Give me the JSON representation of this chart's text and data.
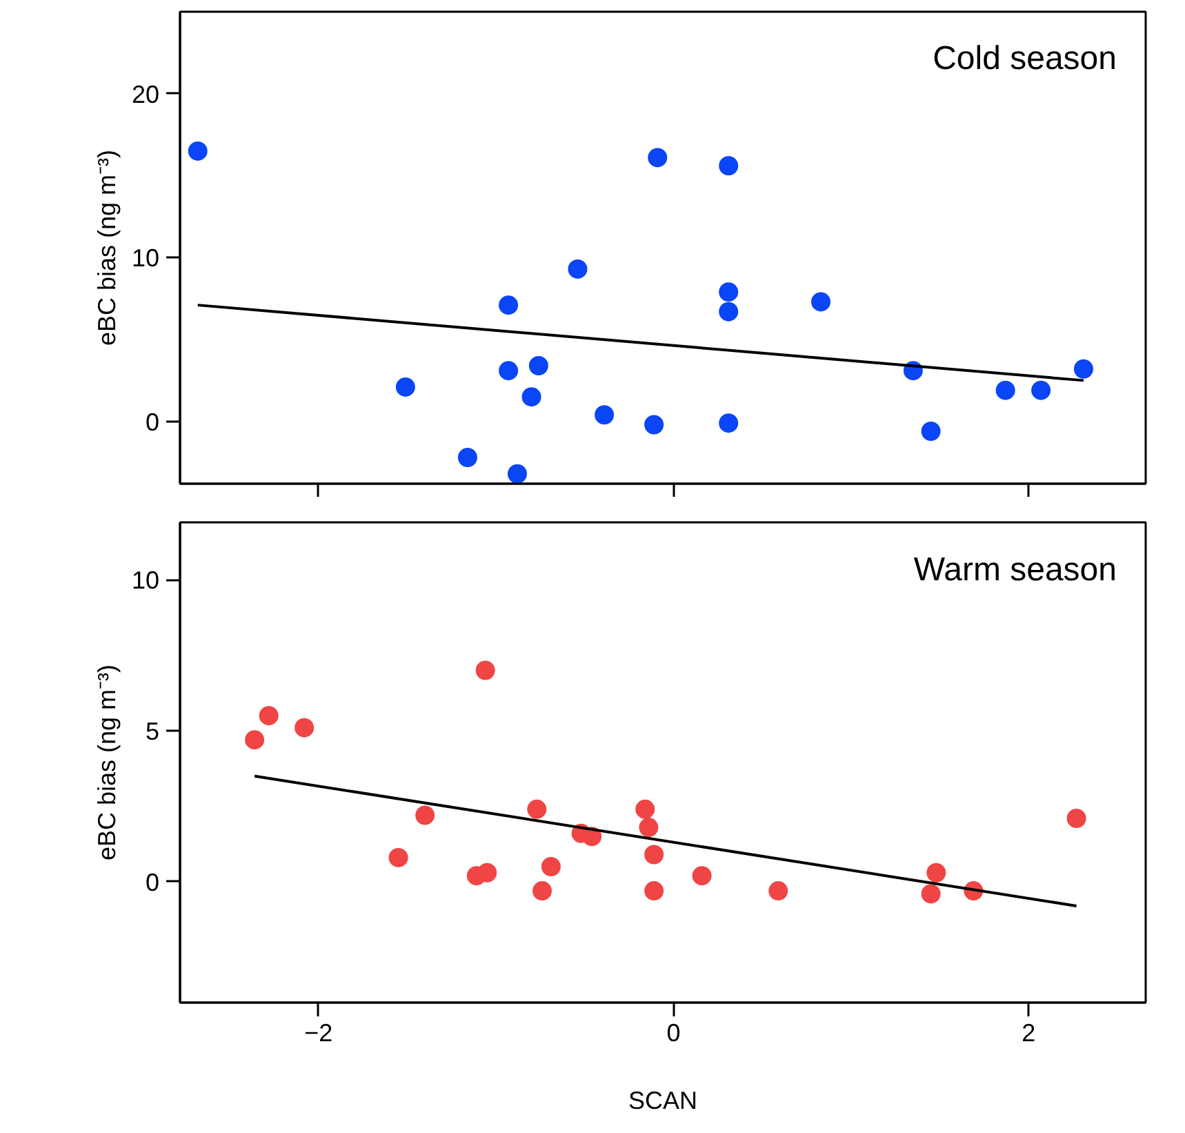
{
  "chart_data": [
    {
      "type": "scatter",
      "title": "Cold season",
      "ylabel": "eBC bias (ng m⁻³)",
      "xlim": [
        -2.78,
        2.66
      ],
      "ylim": [
        -3.8,
        25
      ],
      "xticks": [
        -2,
        0,
        2
      ],
      "yticks": [
        0,
        10,
        20
      ],
      "tick_labels": "y",
      "grid": false,
      "series": [
        {
          "marker": "circle",
          "color": "#0a46f5",
          "x": [
            -2.68,
            -1.51,
            -1.16,
            -0.93,
            -0.93,
            -0.88,
            -0.8,
            -0.76,
            -0.54,
            -0.39,
            -0.09,
            -0.11,
            0.31,
            0.31,
            0.31,
            0.31,
            0.83,
            1.35,
            1.45,
            1.87,
            2.07,
            2.31
          ],
          "values": [
            16.5,
            2.1,
            -2.2,
            7.1,
            3.1,
            -3.2,
            1.5,
            3.4,
            9.3,
            0.4,
            16.1,
            -0.2,
            15.6,
            7.9,
            6.7,
            -0.1,
            7.3,
            3.1,
            -0.6,
            1.9,
            1.9,
            3.2
          ]
        },
        {
          "type": "line",
          "color": "#000000",
          "x": [
            -2.68,
            2.31
          ],
          "values": [
            7.1,
            2.5
          ]
        }
      ]
    },
    {
      "type": "scatter",
      "title": "Warm season",
      "xlabel": "SCAN",
      "ylabel": "eBC bias (ng m⁻³)",
      "xlim": [
        -2.78,
        2.66
      ],
      "ylim": [
        -4,
        11.9
      ],
      "xticks": [
        -2,
        0,
        2
      ],
      "yticks": [
        0,
        5,
        10
      ],
      "grid": false,
      "series": [
        {
          "marker": "circle",
          "color": "#f04545",
          "x": [
            -2.36,
            -2.28,
            -2.08,
            -1.55,
            -1.4,
            -1.11,
            -1.06,
            -1.05,
            -0.77,
            -0.74,
            -0.69,
            -0.52,
            -0.46,
            -0.16,
            -0.14,
            -0.11,
            -0.11,
            0.16,
            0.59,
            1.45,
            1.48,
            1.69,
            2.27
          ],
          "values": [
            4.7,
            5.5,
            5.1,
            0.8,
            2.2,
            0.2,
            7.0,
            0.3,
            2.4,
            -0.3,
            0.5,
            1.6,
            1.5,
            2.4,
            1.8,
            0.9,
            -0.3,
            0.2,
            -0.3,
            -0.4,
            0.3,
            -0.3,
            2.1
          ]
        },
        {
          "type": "line",
          "color": "#000000",
          "x": [
            -2.36,
            2.27
          ],
          "values": [
            3.5,
            -0.8
          ]
        }
      ]
    }
  ]
}
